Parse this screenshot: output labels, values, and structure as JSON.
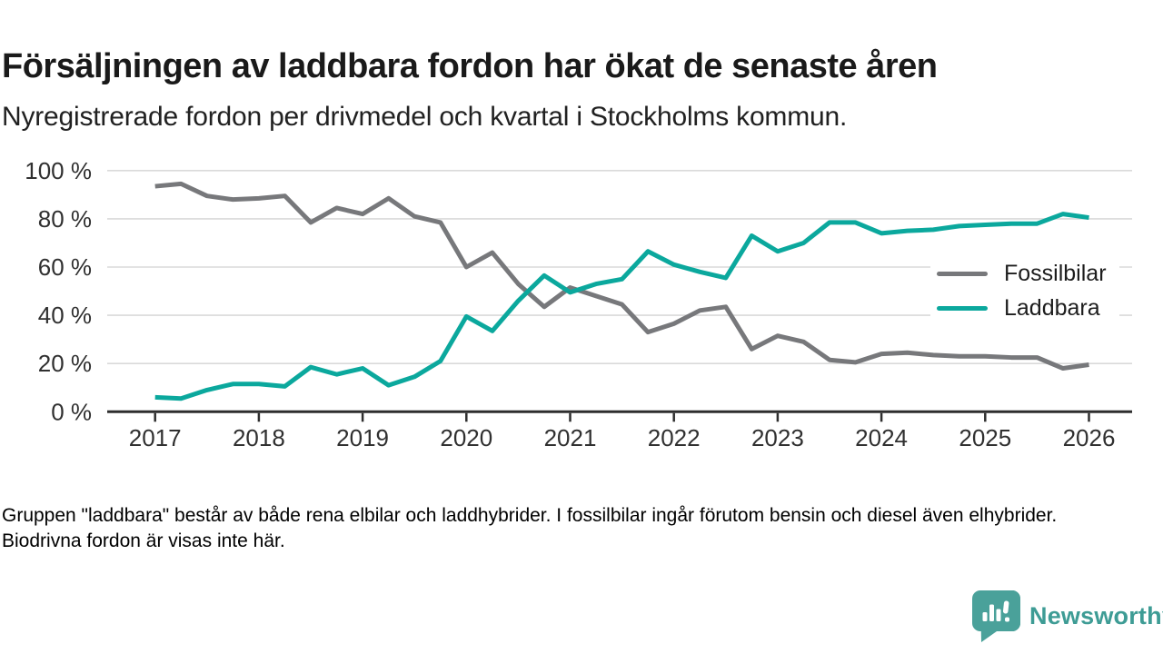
{
  "header": {
    "title": "Försäljningen av laddbara fordon har ökat de senaste åren",
    "subtitle": "Nyregistrerade fordon per drivmedel och kvartal i Stockholms kommun."
  },
  "chart_data": {
    "type": "line",
    "title": "Försäljningen av laddbara fordon har ökat de senaste åren",
    "subtitle": "Nyregistrerade fordon per drivmedel och kvartal i Stockholms kommun.",
    "x_unit": "quarter",
    "categories": [
      "2017-K1",
      "2017-K2",
      "2017-K3",
      "2017-K4",
      "2018-K1",
      "2018-K2",
      "2018-K3",
      "2018-K4",
      "2019-K1",
      "2019-K2",
      "2019-K3",
      "2019-K4",
      "2020-K1",
      "2020-K2",
      "2020-K3",
      "2020-K4",
      "2021-K1",
      "2021-K2",
      "2021-K3",
      "2021-K4",
      "2022-K1",
      "2022-K2",
      "2022-K3",
      "2022-K4",
      "2023-K1",
      "2023-K2",
      "2023-K3",
      "2023-K4",
      "2024-K1",
      "2024-K2",
      "2024-K3",
      "2024-K4",
      "2025-K1",
      "2025-K2",
      "2025-K3",
      "2025-K4",
      "2026-K1"
    ],
    "x_tick_labels": [
      "2017",
      "2018",
      "2019",
      "2020",
      "2021",
      "2022",
      "2023",
      "2024",
      "2025",
      "2026"
    ],
    "y_ticks": [
      0,
      20,
      40,
      60,
      80,
      100
    ],
    "y_tick_suffix": " %",
    "ylim": [
      0,
      100
    ],
    "grid": true,
    "grid_color": "#dadada",
    "axis_color": "#2e2e2e",
    "tick_label_color": "#303030",
    "legend_position": "inside-right",
    "series": [
      {
        "name": "Fossilbilar",
        "color": "#77787b",
        "values": [
          93.5,
          94.5,
          89.5,
          88,
          88.5,
          89.5,
          78.5,
          84.5,
          82,
          88.5,
          81,
          78.5,
          60,
          66,
          53,
          43.5,
          51.5,
          48,
          44.5,
          33,
          36.5,
          42,
          43.5,
          26,
          31.5,
          29,
          21.5,
          20.5,
          24,
          24.5,
          23.5,
          23,
          23,
          22.5,
          22.5,
          18,
          19.5
        ]
      },
      {
        "name": "Laddbara",
        "color": "#0ba89d",
        "values": [
          6,
          5.5,
          9,
          11.5,
          11.5,
          10.5,
          18.5,
          15.5,
          18,
          11,
          14.5,
          21,
          39.5,
          33.5,
          46,
          56.5,
          49.5,
          53,
          55,
          66.5,
          61,
          58,
          55.5,
          73,
          66.5,
          70,
          78.5,
          78.5,
          74,
          75,
          75.5,
          77,
          77.5,
          78,
          78,
          82,
          80.5
        ]
      }
    ]
  },
  "footer": {
    "note": "Gruppen \"laddbara\" består av både rena elbilar och laddhybrider. I fossilbilar ingår förutom bensin och diesel även elhybrider. Biodrivna fordon är visas inte här."
  },
  "branding": {
    "name": "Newsworthy",
    "logo_icon": "bar-chart-speech-bubble",
    "color": "#3e9c95",
    "icon_color": "#4aa19a"
  }
}
